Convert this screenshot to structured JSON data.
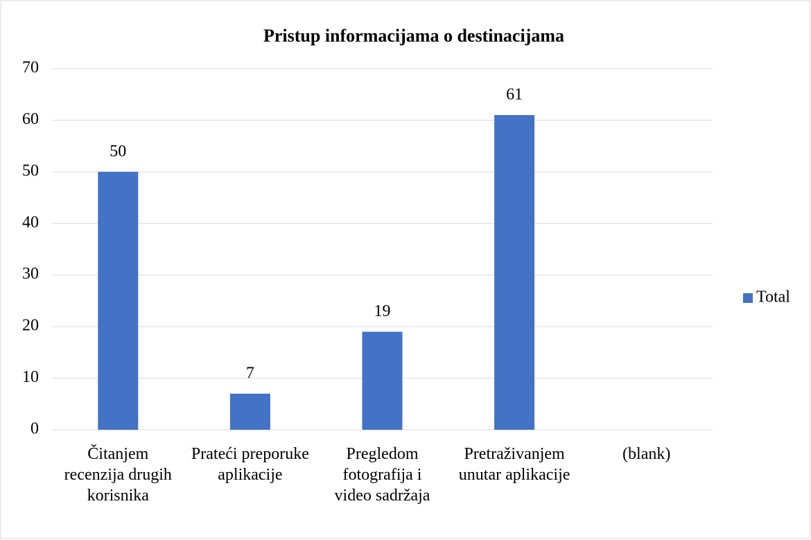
{
  "chart_data": {
    "type": "bar",
    "title": "Pristup informacijama o destinacijama",
    "categories": [
      "Čitanjem recenzija drugih korisnika",
      "Prateći preporuke aplikacije",
      "Pregledom fotografija i video sadržaja",
      "Pretraživanjem unutar aplikacije",
      "(blank)"
    ],
    "series": [
      {
        "name": "Total",
        "color": "#4472c4",
        "values": [
          50,
          7,
          19,
          61,
          null
        ]
      }
    ],
    "ylim": [
      0,
      70
    ],
    "yticks": [
      0,
      10,
      20,
      30,
      40,
      50,
      60,
      70
    ],
    "grid": true,
    "legend": "right"
  }
}
